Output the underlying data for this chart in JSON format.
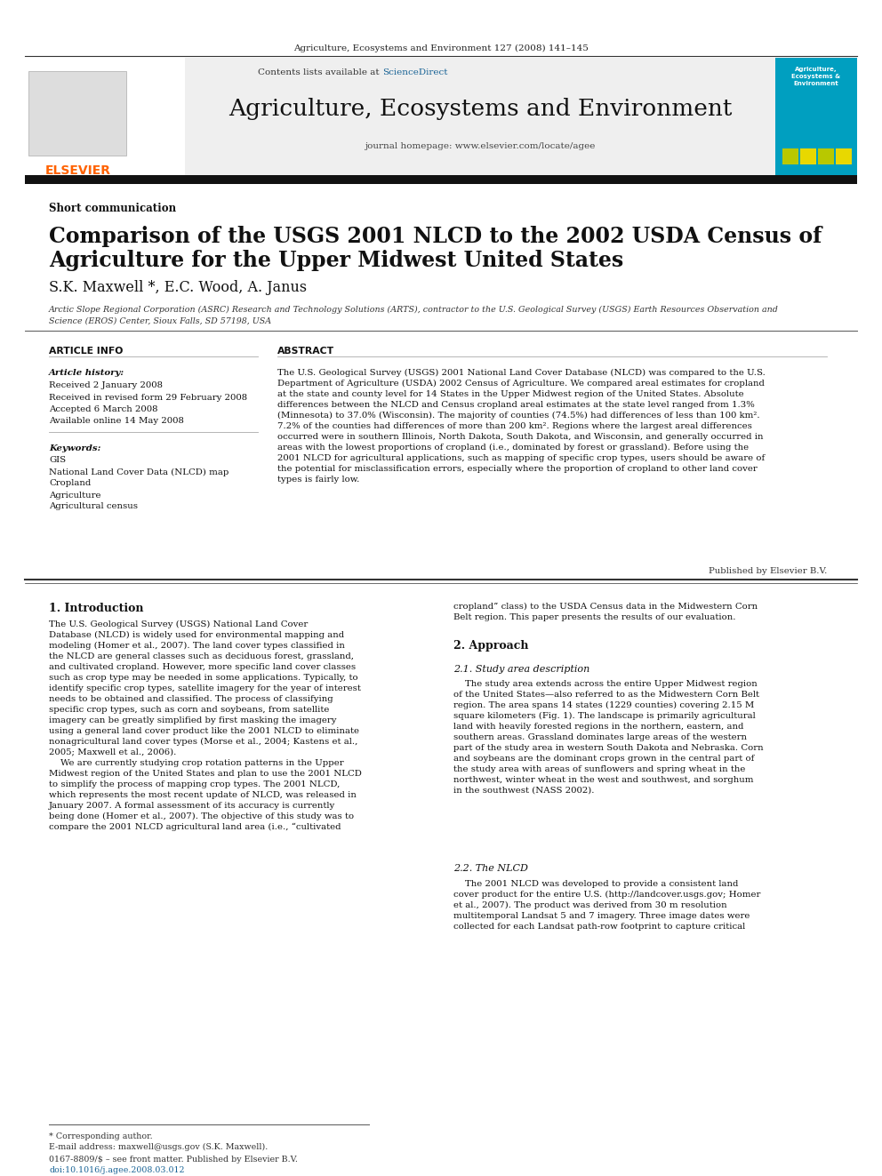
{
  "page_bg": "#ffffff",
  "top_journal_ref": "Agriculture, Ecosystems and Environment 127 (2008) 141–145",
  "journal_title": "Agriculture, Ecosystems and Environment",
  "journal_homepage": "journal homepage: www.elsevier.com/locate/agee",
  "contents_note": "Contents lists available at ScienceDirect",
  "article_type": "Short communication",
  "paper_title_line1": "Comparison of the USGS 2001 NLCD to the 2002 USDA Census of",
  "paper_title_line2": "Agriculture for the Upper Midwest United States",
  "authors": "S.K. Maxwell *, E.C. Wood, A. Janus",
  "affiliation": "Arctic Slope Regional Corporation (ASRC) Research and Technology Solutions (ARTS), contractor to the U.S. Geological Survey (USGS) Earth Resources Observation and\nScience (EROS) Center, Sioux Falls, SD 57198, USA",
  "article_info_header": "ARTICLE INFO",
  "article_history_label": "Article history:",
  "article_history_lines": [
    "Received 2 January 2008",
    "Received in revised form 29 February 2008",
    "Accepted 6 March 2008",
    "Available online 14 May 2008"
  ],
  "keywords_label": "Keywords:",
  "keywords_lines": [
    "GIS",
    "National Land Cover Data (NLCD) map",
    "Cropland",
    "Agriculture",
    "Agricultural census"
  ],
  "abstract_header": "ABSTRACT",
  "abstract_text": "The U.S. Geological Survey (USGS) 2001 National Land Cover Database (NLCD) was compared to the U.S.\nDepartment of Agriculture (USDA) 2002 Census of Agriculture. We compared areal estimates for cropland\nat the state and county level for 14 States in the Upper Midwest region of the United States. Absolute\ndifferences between the NLCD and Census cropland areal estimates at the state level ranged from 1.3%\n(Minnesota) to 37.0% (Wisconsin). The majority of counties (74.5%) had differences of less than 100 km².\n7.2% of the counties had differences of more than 200 km². Regions where the largest areal differences\noccurred were in southern Illinois, North Dakota, South Dakota, and Wisconsin, and generally occurred in\nareas with the lowest proportions of cropland (i.e., dominated by forest or grassland). Before using the\n2001 NLCD for agricultural applications, such as mapping of specific crop types, users should be aware of\nthe potential for misclassification errors, especially where the proportion of cropland to other land cover\ntypes is fairly low.",
  "published_by": "Published by Elsevier B.V.",
  "section1_num": "1.",
  "section1_title": "Introduction",
  "section1_col1": "The U.S. Geological Survey (USGS) National Land Cover\nDatabase (NLCD) is widely used for environmental mapping and\nmodeling (Homer et al., 2007). The land cover types classified in\nthe NLCD are general classes such as deciduous forest, grassland,\nand cultivated cropland. However, more specific land cover classes\nsuch as crop type may be needed in some applications. Typically, to\nidentify specific crop types, satellite imagery for the year of interest\nneeds to be obtained and classified. The process of classifying\nspecific crop types, such as corn and soybeans, from satellite\nimagery can be greatly simplified by first masking the imagery\nusing a general land cover product like the 2001 NLCD to eliminate\nnonagricultural land cover types (Morse et al., 2004; Kastens et al.,\n2005; Maxwell et al., 2006).\n    We are currently studying crop rotation patterns in the Upper\nMidwest region of the United States and plan to use the 2001 NLCD\nto simplify the process of mapping crop types. The 2001 NLCD,\nwhich represents the most recent update of NLCD, was released in\nJanuary 2007. A formal assessment of its accuracy is currently\nbeing done (Homer et al., 2007). The objective of this study was to\ncompare the 2001 NLCD agricultural land area (i.e., “cultivated",
  "section1_col2": "cropland” class) to the USDA Census data in the Midwestern Corn\nBelt region. This paper presents the results of our evaluation.",
  "section2_num": "2.",
  "section2_title": "Approach",
  "section21_num": "2.1.",
  "section21_title": "Study area description",
  "section21_col2": "    The study area extends across the entire Upper Midwest region\nof the United States—also referred to as the Midwestern Corn Belt\nregion. The area spans 14 states (1229 counties) covering 2.15 M\nsquare kilometers (Fig. 1). The landscape is primarily agricultural\nland with heavily forested regions in the northern, eastern, and\nsouthern areas. Grassland dominates large areas of the western\npart of the study area in western South Dakota and Nebraska. Corn\nand soybeans are the dominant crops grown in the central part of\nthe study area with areas of sunflowers and spring wheat in the\nnorthwest, winter wheat in the west and southwest, and sorghum\nin the southwest (NASS 2002).",
  "section22_num": "2.2.",
  "section22_title": "The NLCD",
  "section22_col2": "    The 2001 NLCD was developed to provide a consistent land\ncover product for the entire U.S. (http://landcover.usgs.gov; Homer\net al., 2007). The product was derived from 30 m resolution\nmultitemporal Landsat 5 and 7 imagery. Three image dates were\ncollected for each Landsat path-row footprint to capture critical",
  "footnote_star": "* Corresponding author.",
  "footnote_email": "E-mail address: maxwell@usgs.gov (S.K. Maxwell).",
  "footnote_issn": "0167-8809/$ – see front matter. Published by Elsevier B.V.",
  "footnote_doi": "doi:10.1016/j.agee.2008.03.012",
  "elsevier_color": "#FF6200",
  "sciencedirect_color": "#1a6496",
  "header_bar_color": "#111111",
  "link_color": "#1a6496"
}
